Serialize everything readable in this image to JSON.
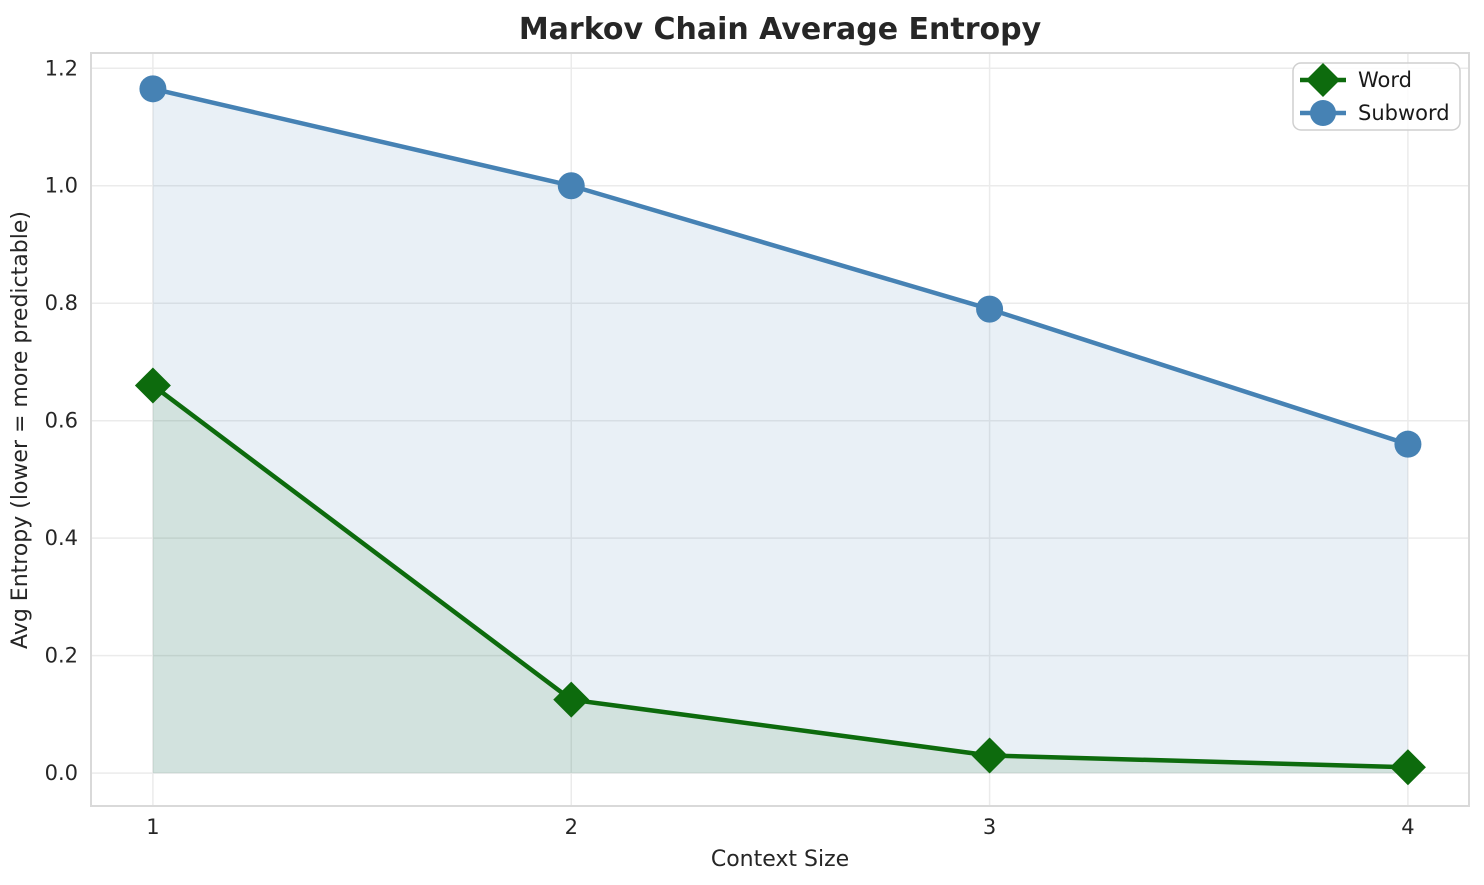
{
  "chart_data": {
    "type": "line",
    "title": "Markov Chain Average Entropy",
    "xlabel": "Context Size",
    "ylabel": "Avg Entropy (lower = more predictable)",
    "x": [
      1,
      2,
      3,
      4
    ],
    "xtick_labels": [
      "1",
      "2",
      "3",
      "4"
    ],
    "yticks": [
      0.0,
      0.2,
      0.4,
      0.6,
      0.8,
      1.0,
      1.2
    ],
    "ytick_labels": [
      "0.0",
      "0.2",
      "0.4",
      "0.6",
      "0.8",
      "1.0",
      "1.2"
    ],
    "xlim": [
      0.852,
      4.146
    ],
    "ylim": [
      -0.056,
      1.226
    ],
    "grid": true,
    "legend": {
      "position": "upper right",
      "entries": [
        "Word",
        "Subword"
      ]
    },
    "series": [
      {
        "name": "Word",
        "marker": "diamond",
        "color": "#0d6b0d",
        "fill_opacity": 0.1,
        "values": [
          0.66,
          0.125,
          0.03,
          0.01
        ]
      },
      {
        "name": "Subword",
        "marker": "circle",
        "color": "#4682b4",
        "fill_opacity": 0.12,
        "values": [
          1.165,
          1.0,
          0.79,
          0.56
        ]
      }
    ]
  },
  "style_colors": {
    "grid": "#ebebeb",
    "spine": "#d9d9d9",
    "legend_border": "#cfcfcf"
  }
}
